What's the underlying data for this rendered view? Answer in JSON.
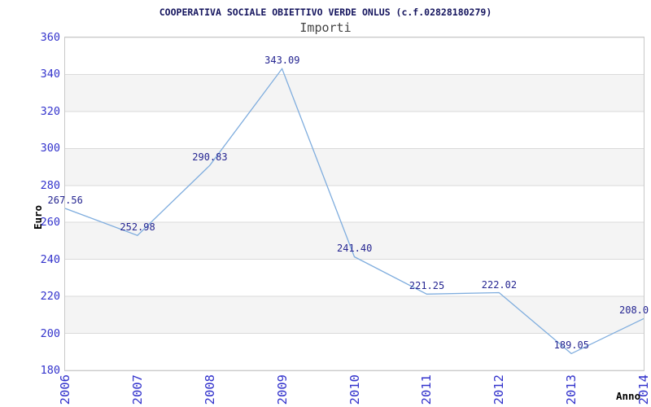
{
  "chart": {
    "title": "COOPERATIVA SOCIALE OBIETTIVO VERDE ONLUS (c.f.02828180279)",
    "subtitle": "Importi",
    "ylabel": "Euro",
    "xlabel": "Anno"
  },
  "chart_data": {
    "type": "line",
    "title": "COOPERATIVA SOCIALE OBIETTIVO VERDE ONLUS (c.f.02828180279)",
    "subtitle": "Importi",
    "xlabel": "Anno",
    "ylabel": "Euro",
    "categories": [
      "2006",
      "2007",
      "2008",
      "2009",
      "2010",
      "2011",
      "2012",
      "2013",
      "2014"
    ],
    "values": [
      267.56,
      252.98,
      290.83,
      343.09,
      241.4,
      221.25,
      222.02,
      189.05,
      208.0
    ],
    "point_labels": [
      "267.56",
      "252.98",
      "290.83",
      "343.09",
      "241.40",
      "221.25",
      "222.02",
      "189.05",
      "208.0"
    ],
    "ylim": [
      180,
      360
    ],
    "ytick_step": 20,
    "yticks": [
      360,
      340,
      320,
      300,
      280,
      260,
      240,
      220,
      200,
      180
    ],
    "grid": "horizontal gridlines with alternating shaded bands",
    "legend": "none",
    "markers": "none",
    "colors": {
      "line": "#7fadde",
      "tick_labels": "#3333cc",
      "point_labels": "#252591",
      "title": "#15155e",
      "subtitle": "#444444",
      "axis_titles": "#000000",
      "band": "#f4f4f4",
      "grid": "#dadada",
      "border": "#c9c9c9",
      "background": "#ffffff"
    }
  }
}
